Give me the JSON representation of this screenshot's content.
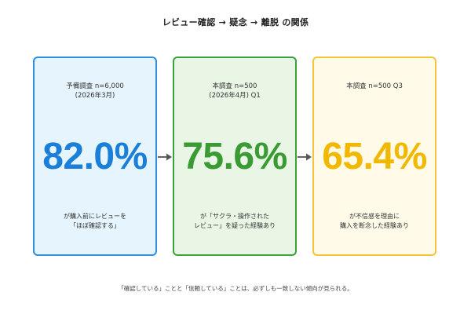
{
  "title": "レビュー確認 → 疑念 → 離脱 の関係",
  "cards": [
    {
      "head": [
        "予備調査 n=6,000",
        "(2026年3月)"
      ],
      "value": "82.0%",
      "color": "#1a7fd8",
      "desc": [
        "が購入前にレビューを",
        "「ほぼ確認する」"
      ]
    },
    {
      "head": [
        "本調査 n=500",
        "(2026年4月) Q1"
      ],
      "value": "75.6%",
      "color": "#3a9a34",
      "desc": [
        "が「サクラ・操作された",
        "レビュー」を疑った経験あり"
      ]
    },
    {
      "head": [
        "本調査 n=500 Q3"
      ],
      "value": "65.4%",
      "color": "#f2b800",
      "desc": [
        "が不信感を理由に",
        "購入を断念した経験あり"
      ]
    }
  ],
  "footnote": "「確認している」ことと「信頼している」ことは、必ずしも一致しない傾向が見られる。"
}
